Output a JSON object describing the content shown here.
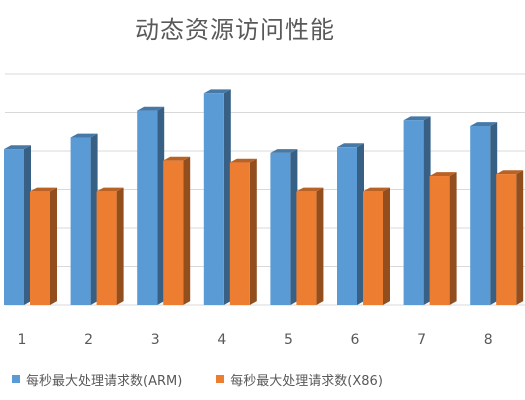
{
  "chart_data": {
    "type": "bar",
    "title": "动态资源访问性能",
    "categories": [
      "1",
      "2",
      "3",
      "4",
      "5",
      "6",
      "7",
      "8"
    ],
    "series": [
      {
        "name": "每秒最大处理请求数(ARM)",
        "values": [
          4.05,
          4.35,
          5.05,
          5.5,
          3.95,
          4.1,
          4.8,
          4.65
        ]
      },
      {
        "name": "每秒最大处理请求数(X86)",
        "values": [
          2.95,
          2.95,
          3.75,
          3.7,
          2.95,
          2.95,
          3.35,
          3.4
        ]
      }
    ],
    "ylim": [
      0,
      7
    ],
    "grid": true,
    "legend": "bottom",
    "colors": [
      "#5B9BD5",
      "#ED7D31"
    ]
  }
}
